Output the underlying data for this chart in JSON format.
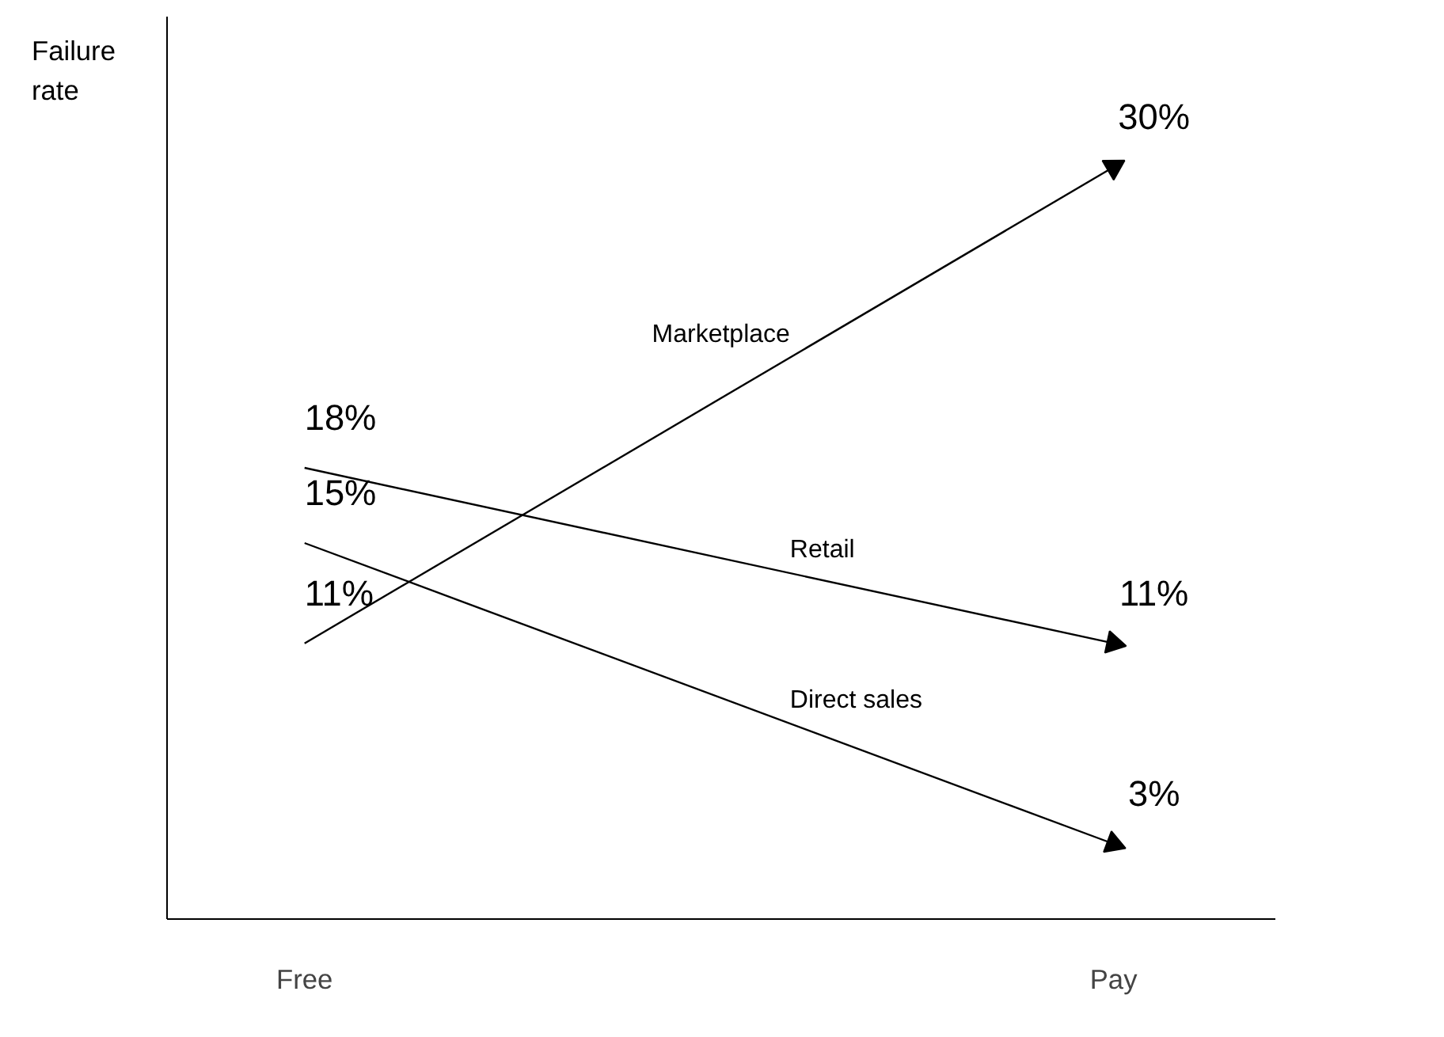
{
  "chart_data": {
    "type": "line",
    "ylabel": "Failure rate",
    "categories": [
      "Free",
      "Pay"
    ],
    "ylim": [
      0,
      36
    ],
    "series": [
      {
        "name": "Marketplace",
        "color": "#000000",
        "values": [
          11,
          30
        ],
        "value_labels": [
          "11%",
          "30%"
        ]
      },
      {
        "name": "Retail",
        "color": "#000000",
        "values": [
          18,
          11
        ],
        "value_labels": [
          "18%",
          "11%"
        ]
      },
      {
        "name": "Direct sales",
        "color": "#000000",
        "values": [
          15,
          3
        ],
        "value_labels": [
          "15%",
          "3%"
        ]
      }
    ]
  }
}
